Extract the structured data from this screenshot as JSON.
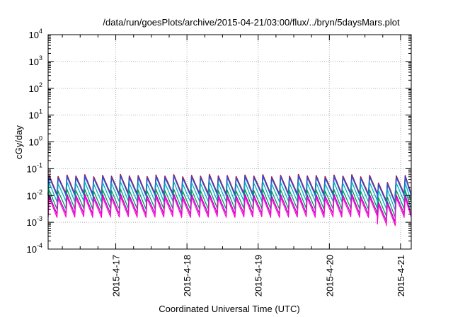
{
  "chart_data": {
    "type": "line",
    "title": "/data/run/goesPlots/archive/2015-04-21/03:00/flux/../bryn/5daysMars.plot",
    "xlabel": "Coordinated Universal Time (UTC)",
    "ylabel": "cGy/day",
    "y_scale": "log",
    "ylim_exp": [
      -4,
      4
    ],
    "y_tick_exponents": [
      -4,
      -3,
      -2,
      -1,
      0,
      1,
      2,
      3,
      4
    ],
    "y_tick_base": "10",
    "xlim_days": [
      16.05,
      21.15
    ],
    "x_ticks": [
      {
        "label": "2015-4-17",
        "day": 17
      },
      {
        "label": "2015-4-18",
        "day": 18
      },
      {
        "label": "2015-4-19",
        "day": 19
      },
      {
        "label": "2015-4-20",
        "day": 20
      },
      {
        "label": "2015-4-21",
        "day": 21
      }
    ],
    "grid": true,
    "cycle_days": 0.125,
    "series": [
      {
        "color": "#d40000",
        "peak": 0.055,
        "trough": 0.0115
      },
      {
        "color": "#2a50d8",
        "peak": 0.05,
        "trough": 0.0105
      },
      {
        "color": "#00b0c0",
        "peak": 0.03,
        "trough": 0.006
      },
      {
        "color": "#009a60",
        "peak": 0.016,
        "trough": 0.0032
      },
      {
        "color": "#b000c0",
        "peak": 0.0105,
        "trough": 0.0021
      },
      {
        "color": "#ff00d0",
        "peak": 0.0085,
        "trough": 0.0016
      }
    ]
  }
}
